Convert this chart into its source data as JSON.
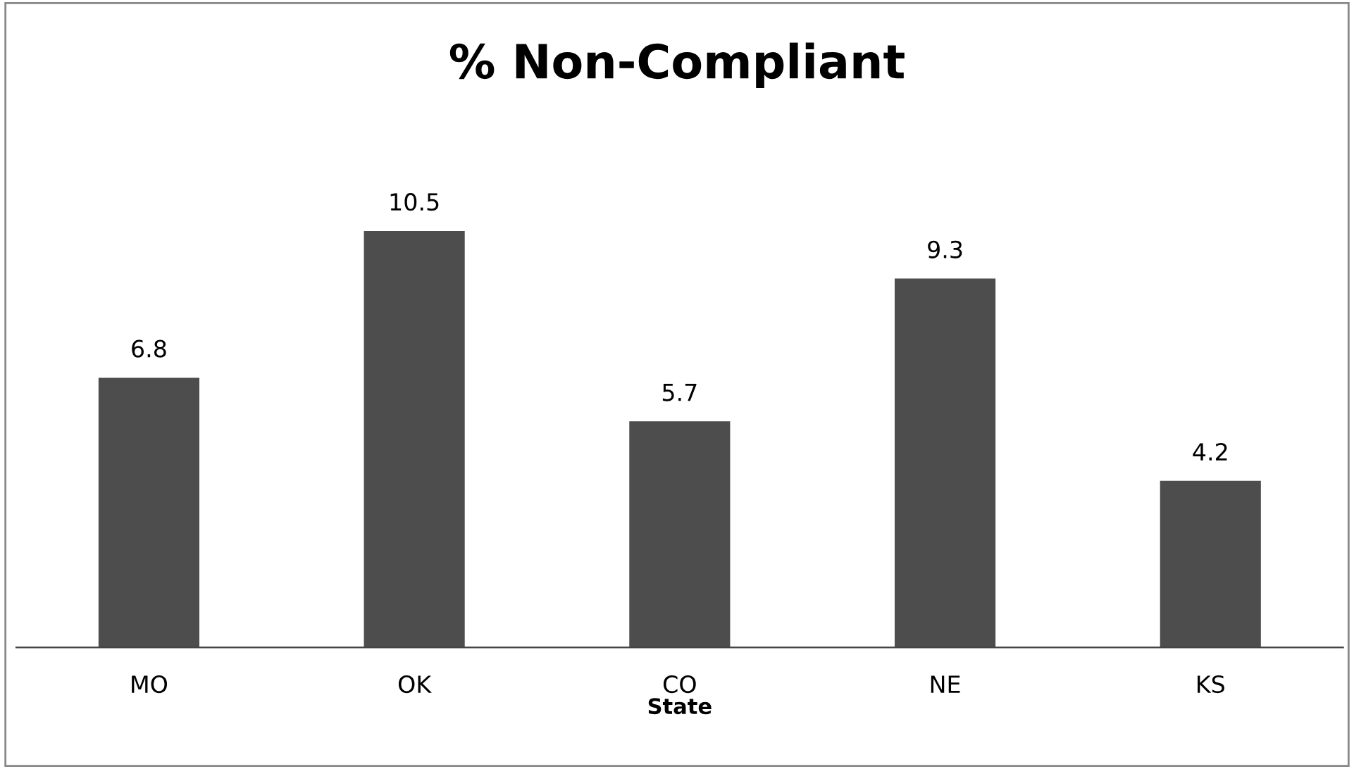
{
  "chart_data": {
    "type": "bar",
    "title": "% Non-Compliant",
    "xlabel": "State",
    "categories": [
      "MO",
      "OK",
      "CO",
      "NE",
      "KS"
    ],
    "values": [
      6.8,
      10.5,
      5.7,
      9.3,
      4.2
    ],
    "color": "#4d4d4d",
    "data_labels": true,
    "grid": false,
    "legend": false
  }
}
